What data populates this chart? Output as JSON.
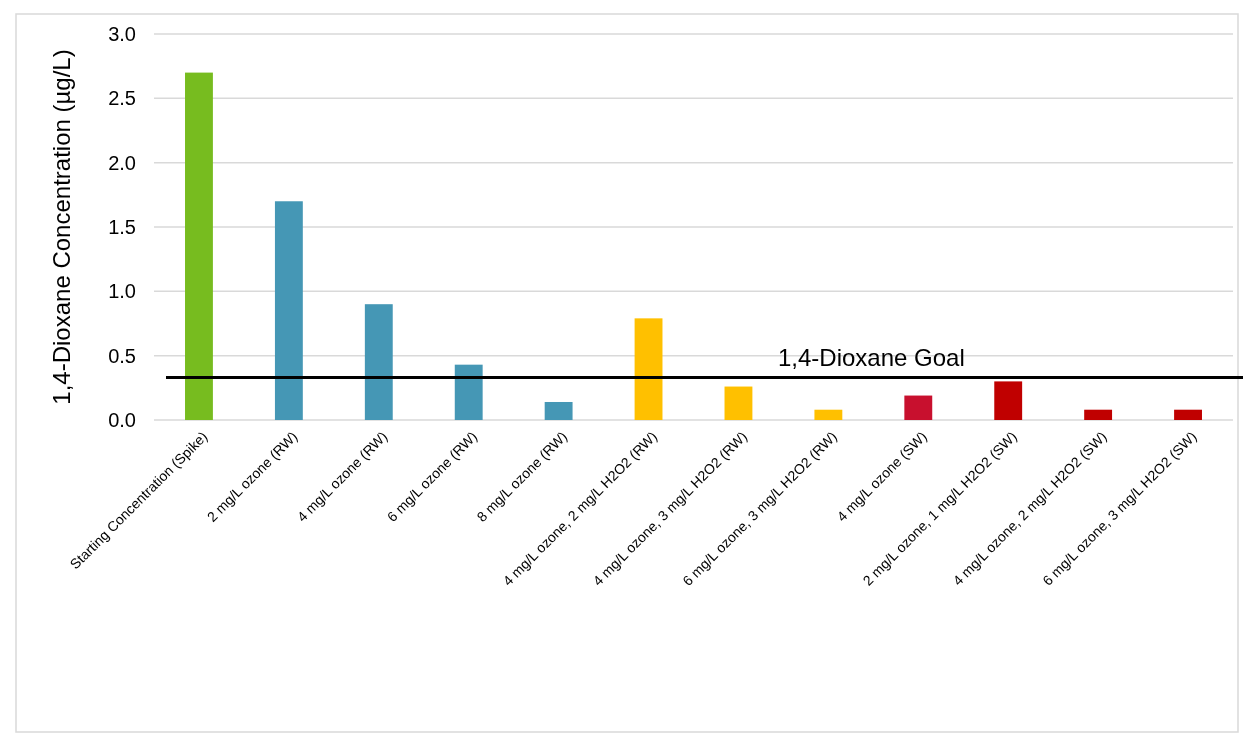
{
  "chart_data": {
    "type": "bar",
    "ylabel": "1,4-Dioxane Concentration (µg/L)",
    "categories": [
      "Starting Concentration (Spike)",
      "2 mg/L ozone (RW)",
      "4 mg/L ozone (RW)",
      "6 mg/L ozone (RW)",
      "8 mg/L ozone (RW)",
      "4 mg/L ozone, 2 mg/L H2O2 (RW)",
      "4 mg/L ozone, 3 mg/L H2O2 (RW)",
      "6 mg/L ozone, 3 mg/L H2O2 (RW)",
      "4 mg/L ozone (SW)",
      "2 mg/L ozone, 1 mg/L H2O2 (SW)",
      "4 mg/L ozone, 2 mg/L H2O2 (SW)",
      "6 mg/L ozone, 3 mg/L H2O2 (SW)"
    ],
    "values": [
      2.7,
      1.7,
      0.9,
      0.43,
      0.14,
      0.79,
      0.26,
      0.08,
      0.19,
      0.3,
      0.08,
      0.08
    ],
    "colors": [
      "#77bc1f",
      "#4597b5",
      "#4597b5",
      "#4597b5",
      "#4597b5",
      "#ffc000",
      "#ffc000",
      "#ffc000",
      "#c8102e",
      "#c00000",
      "#c00000",
      "#c00000"
    ],
    "ylim": [
      0,
      3
    ],
    "yticks": [
      {
        "value": 0,
        "label": "0.0"
      },
      {
        "value": 0.5,
        "label": "0.5"
      },
      {
        "value": 1,
        "label": "1.0"
      },
      {
        "value": 1.5,
        "label": "1.5"
      },
      {
        "value": 2,
        "label": "2.0"
      },
      {
        "value": 2.5,
        "label": "2.5"
      },
      {
        "value": 3,
        "label": "3.0"
      }
    ],
    "grid": "y",
    "ref_lines": [
      {
        "axis": "y",
        "value": 0.33,
        "label": "1,4-Dioxane Goal",
        "color": "#000000"
      }
    ]
  }
}
